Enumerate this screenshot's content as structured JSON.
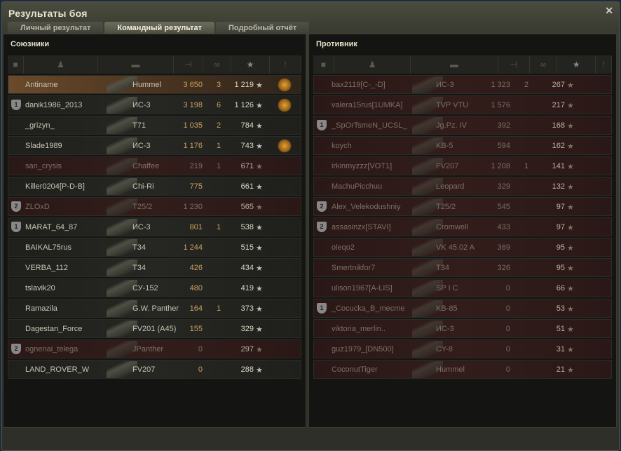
{
  "window": {
    "title": "Результаты боя",
    "close_icon": "close-icon"
  },
  "tabs": [
    {
      "label": "Личный результат"
    },
    {
      "label": "Командный результат",
      "active": true
    },
    {
      "label": "Подробный отчёт"
    }
  ],
  "header_icons": [
    "platoon-icon",
    "player-icon",
    "tank-icon",
    "damage-icon",
    "kills-icon",
    "xp-star-icon",
    "medal-icon"
  ],
  "allies": {
    "title": "Союзники",
    "rows": [
      {
        "name": "Antiname",
        "tank": "Hummel",
        "damage": "3 650",
        "kills": "3",
        "xp": "1 219",
        "medal": true,
        "me": true
      },
      {
        "name": "danik1986_2013",
        "tank": "ИС-3",
        "damage": "3 198",
        "kills": "6",
        "xp": "1 126",
        "medal": true,
        "platoon": "1"
      },
      {
        "name": "_grizyn_",
        "tank": "T71",
        "damage": "1 035",
        "kills": "2",
        "xp": "784"
      },
      {
        "name": "Slade1989",
        "tank": "ИС-3",
        "damage": "1 176",
        "kills": "1",
        "xp": "743",
        "medal": true
      },
      {
        "name": "san_crysis",
        "tank": "Chaffee",
        "damage": "219",
        "kills": "1",
        "xp": "671",
        "dead": true
      },
      {
        "name": "Killer0204[P-D-B]",
        "tank": "Chi-Ri",
        "damage": "775",
        "kills": "",
        "xp": "661"
      },
      {
        "name": "ZLOxD",
        "tank": "T25/2",
        "damage": "1 230",
        "kills": "",
        "xp": "565",
        "dead": true,
        "platoon": "2"
      },
      {
        "name": "MARAT_64_87",
        "tank": "ИС-3",
        "damage": "801",
        "kills": "1",
        "xp": "538",
        "platoon": "1"
      },
      {
        "name": "BAIKAL75rus",
        "tank": "T34",
        "damage": "1 244",
        "kills": "",
        "xp": "515"
      },
      {
        "name": "VERBA_112",
        "tank": "T34",
        "damage": "426",
        "kills": "",
        "xp": "434"
      },
      {
        "name": "tslavik20",
        "tank": "СУ-152",
        "damage": "480",
        "kills": "",
        "xp": "419"
      },
      {
        "name": "Ramazila",
        "tank": "G.W. Panther",
        "damage": "164",
        "kills": "1",
        "xp": "373"
      },
      {
        "name": "Dagestan_Force",
        "tank": "FV201 (A45)",
        "damage": "155",
        "kills": "",
        "xp": "329"
      },
      {
        "name": "ognenai_telega",
        "tank": "JPanther",
        "damage": "0",
        "kills": "",
        "xp": "297",
        "dead": true,
        "platoon": "2"
      },
      {
        "name": "LAND_ROVER_W",
        "tank": "FV207",
        "damage": "0",
        "kills": "",
        "xp": "288"
      }
    ]
  },
  "enemies": {
    "title": "Противник",
    "rows": [
      {
        "name": "bax2119[C-_-D]",
        "tank": "ИС-3",
        "damage": "1 323",
        "kills": "2",
        "xp": "267",
        "dead": true
      },
      {
        "name": "valera15rus[1UMKA]",
        "tank": "TVP VTU",
        "damage": "1 576",
        "kills": "",
        "xp": "217",
        "dead": true
      },
      {
        "name": "_SpOrTsmeN_UCSL_",
        "tank": "Jg.Pz. IV",
        "damage": "392",
        "kills": "",
        "xp": "168",
        "dead": true,
        "platoon": "1"
      },
      {
        "name": "koych",
        "tank": "KB-5",
        "damage": "594",
        "kills": "",
        "xp": "162",
        "dead": true
      },
      {
        "name": "irkinmyzzz[VOT1]",
        "tank": "FV207",
        "damage": "1 208",
        "kills": "1",
        "xp": "141",
        "dead": true
      },
      {
        "name": "MachuPicchuu",
        "tank": "Leopard",
        "damage": "329",
        "kills": "",
        "xp": "132",
        "dead": true
      },
      {
        "name": "Alex_Velekodushniy",
        "tank": "T25/2",
        "damage": "545",
        "kills": "",
        "xp": "97",
        "dead": true,
        "platoon": "2"
      },
      {
        "name": "assasinzx[STAVI]",
        "tank": "Cromwell",
        "damage": "433",
        "kills": "",
        "xp": "97",
        "dead": true,
        "platoon": "2"
      },
      {
        "name": "oleqo2",
        "tank": "VK 45.02 A",
        "damage": "369",
        "kills": "",
        "xp": "95",
        "dead": true
      },
      {
        "name": "Smertnikfor7",
        "tank": "T34",
        "damage": "326",
        "kills": "",
        "xp": "95",
        "dead": true
      },
      {
        "name": "ulison1967[A-LIS]",
        "tank": "SP I C",
        "damage": "0",
        "kills": "",
        "xp": "66",
        "dead": true
      },
      {
        "name": "_Cocucka_B_mecme",
        "tank": "KB-85",
        "damage": "0",
        "kills": "",
        "xp": "53",
        "dead": true,
        "platoon": "1"
      },
      {
        "name": "viktoria_merlin..",
        "tank": "ИС-3",
        "damage": "0",
        "kills": "",
        "xp": "51",
        "dead": true
      },
      {
        "name": "guz1979_[DN500]",
        "tank": "CY-8",
        "damage": "0",
        "kills": "",
        "xp": "31",
        "dead": true
      },
      {
        "name": "CoconutTiger",
        "tank": "Hummel",
        "damage": "0",
        "kills": "",
        "xp": "21",
        "dead": true
      }
    ]
  },
  "star_glyph": "★"
}
